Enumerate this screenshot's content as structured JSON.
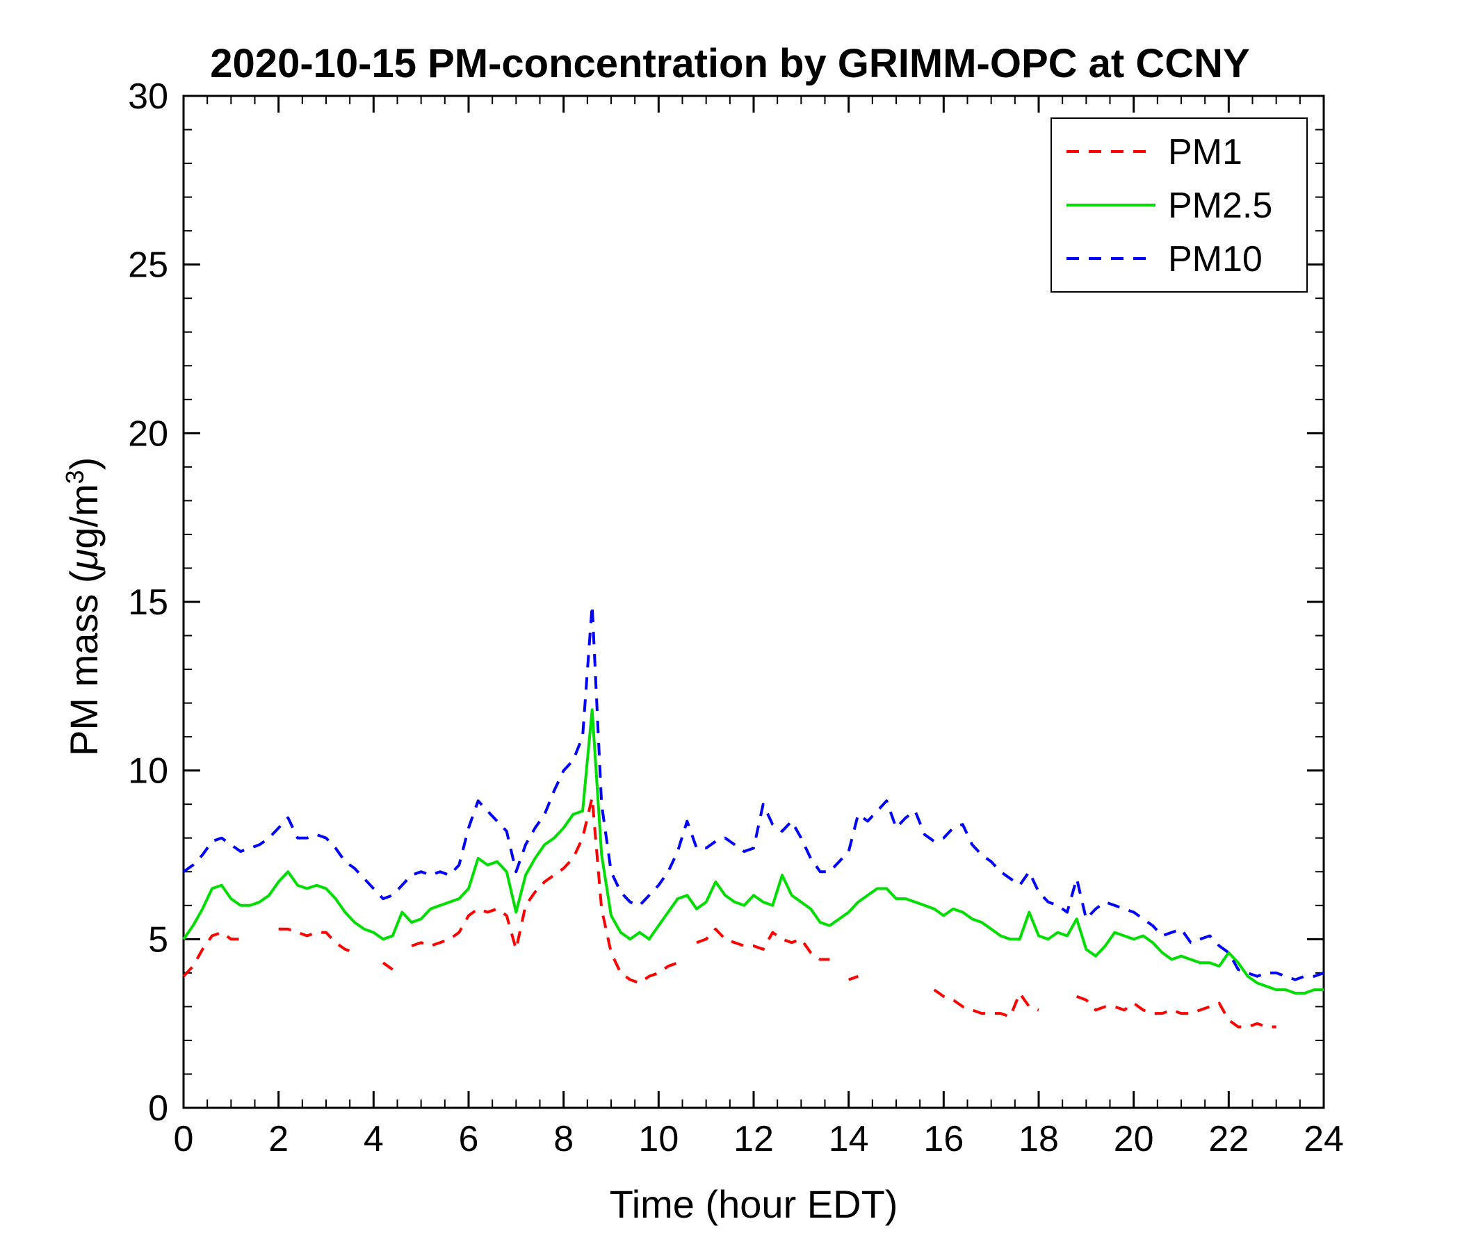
{
  "chart_data": {
    "type": "line",
    "title": "2020-10-15 PM-concentration by GRIMM-OPC at CCNY",
    "xlabel": "Time (hour EDT)",
    "ylabel_parts": {
      "pre": "PM mass (",
      "mu": "μ",
      "mid": "g/m",
      "sup": "3",
      "post": ")"
    },
    "xlim": [
      0,
      24
    ],
    "ylim": [
      0,
      30
    ],
    "xticks": [
      0,
      2,
      4,
      6,
      8,
      10,
      12,
      14,
      16,
      18,
      20,
      22,
      24
    ],
    "yticks": [
      0,
      5,
      10,
      15,
      20,
      25,
      30
    ],
    "x_minor_step": 0.5,
    "y_minor_step": 1,
    "x_start": 0,
    "x_step": 0.2,
    "grid": false,
    "legend_position": "top-right",
    "axis_color": "#000000",
    "series": [
      {
        "name": "PM1",
        "color": "#ff0000",
        "style": "dashed",
        "values": [
          3.9,
          4.2,
          4.7,
          5.1,
          5.2,
          5.0,
          5.0,
          null,
          null,
          null,
          5.3,
          5.3,
          5.2,
          5.1,
          5.2,
          5.2,
          4.9,
          4.7,
          4.6,
          null,
          null,
          4.3,
          4.1,
          null,
          4.8,
          4.9,
          4.8,
          4.9,
          5.0,
          5.2,
          5.7,
          5.9,
          5.8,
          5.9,
          5.7,
          4.7,
          6.0,
          6.4,
          6.7,
          6.9,
          7.1,
          7.4,
          8.0,
          9.2,
          5.9,
          4.6,
          4.0,
          3.8,
          3.7,
          3.9,
          4.0,
          4.2,
          4.3,
          null,
          4.9,
          5.0,
          5.3,
          5.0,
          4.9,
          4.8,
          4.8,
          4.7,
          5.2,
          5.0,
          4.9,
          5.0,
          4.6,
          4.4,
          4.4,
          null,
          3.8,
          3.9,
          null,
          null,
          null,
          null,
          null,
          null,
          null,
          3.5,
          3.3,
          3.2,
          3.0,
          2.9,
          2.8,
          2.8,
          2.8,
          2.7,
          3.4,
          3.0,
          2.9,
          null,
          3.1,
          null,
          3.3,
          3.2,
          2.9,
          3.0,
          3.0,
          2.9,
          3.1,
          2.9,
          2.8,
          2.8,
          2.9,
          2.8,
          2.8,
          2.9,
          3.0,
          3.1,
          2.6,
          2.4,
          2.4,
          2.5,
          2.4,
          2.4,
          null,
          null,
          null,
          null,
          null
        ]
      },
      {
        "name": "PM2.5",
        "color": "#00dd00",
        "style": "solid",
        "values": [
          5.0,
          5.4,
          5.9,
          6.5,
          6.6,
          6.2,
          6.0,
          6.0,
          6.1,
          6.3,
          6.7,
          7.0,
          6.6,
          6.5,
          6.6,
          6.5,
          6.2,
          5.8,
          5.5,
          5.3,
          5.2,
          5.0,
          5.1,
          5.8,
          5.5,
          5.6,
          5.9,
          6.0,
          6.1,
          6.2,
          6.5,
          7.4,
          7.2,
          7.3,
          7.0,
          5.8,
          6.9,
          7.4,
          7.8,
          8.0,
          8.3,
          8.7,
          8.8,
          11.8,
          7.5,
          5.7,
          5.2,
          5.0,
          5.2,
          5.0,
          5.4,
          5.8,
          6.2,
          6.3,
          5.9,
          6.1,
          6.7,
          6.3,
          6.1,
          6.0,
          6.3,
          6.1,
          6.0,
          6.9,
          6.3,
          6.1,
          5.9,
          5.5,
          5.4,
          5.6,
          5.8,
          6.1,
          6.3,
          6.5,
          6.5,
          6.2,
          6.2,
          6.1,
          6.0,
          5.9,
          5.7,
          5.9,
          5.8,
          5.6,
          5.5,
          5.3,
          5.1,
          5.0,
          5.0,
          5.8,
          5.1,
          5.0,
          5.2,
          5.1,
          5.6,
          4.7,
          4.5,
          4.8,
          5.2,
          5.1,
          5.0,
          5.1,
          4.9,
          4.6,
          4.4,
          4.5,
          4.4,
          4.3,
          4.3,
          4.2,
          4.6,
          4.3,
          3.9,
          3.7,
          3.6,
          3.5,
          3.5,
          3.4,
          3.4,
          3.5,
          3.5
        ]
      },
      {
        "name": "PM10",
        "color": "#0000ff",
        "style": "dashed",
        "values": [
          7.0,
          7.2,
          7.5,
          7.9,
          8.0,
          7.8,
          7.6,
          7.7,
          7.8,
          8.0,
          8.3,
          8.6,
          8.0,
          8.0,
          8.1,
          8.0,
          7.7,
          7.3,
          7.1,
          6.8,
          6.5,
          6.2,
          6.3,
          6.6,
          6.9,
          7.0,
          6.9,
          7.0,
          6.9,
          7.2,
          8.3,
          9.1,
          8.8,
          8.5,
          8.2,
          7.0,
          7.8,
          8.3,
          8.7,
          9.4,
          10.0,
          10.3,
          11.0,
          14.9,
          9.0,
          7.0,
          6.4,
          6.1,
          6.0,
          6.3,
          6.6,
          7.0,
          7.6,
          8.5,
          7.7,
          7.7,
          7.9,
          8.0,
          7.8,
          7.6,
          7.7,
          9.0,
          8.4,
          8.2,
          8.5,
          8.0,
          7.4,
          7.0,
          7.0,
          7.3,
          7.6,
          8.7,
          8.5,
          8.8,
          9.1,
          8.3,
          8.6,
          8.8,
          8.1,
          7.9,
          8.0,
          8.3,
          8.4,
          7.8,
          7.5,
          7.3,
          7.0,
          6.8,
          6.6,
          7.0,
          6.4,
          6.1,
          6.0,
          5.8,
          6.8,
          5.6,
          5.9,
          6.1,
          6.0,
          5.9,
          5.8,
          5.6,
          5.4,
          5.1,
          5.2,
          5.3,
          4.9,
          5.0,
          5.1,
          4.8,
          4.6,
          4.1,
          4.0,
          3.9,
          4.0,
          4.0,
          3.9,
          3.8,
          3.9,
          3.9,
          4.0
        ]
      }
    ]
  }
}
